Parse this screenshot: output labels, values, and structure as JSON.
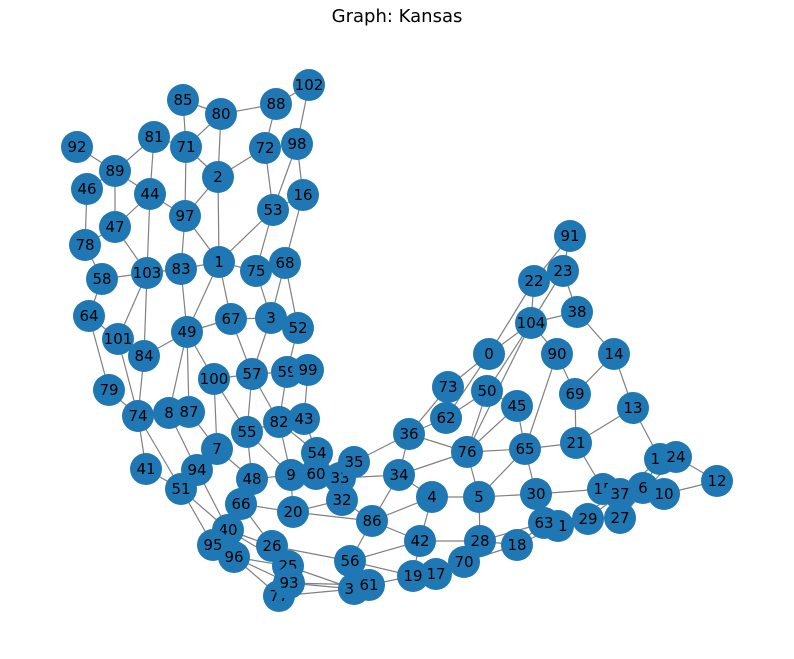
{
  "title": "Graph: Kansas",
  "colors": {
    "node": "#1f77b4",
    "edge": "#808080",
    "label": "#000000"
  },
  "nodes": [
    "0",
    "1",
    "2",
    "3",
    "4",
    "5",
    "6",
    "7",
    "8",
    "9",
    "10",
    "11",
    "12",
    "13",
    "14",
    "15",
    "16",
    "17",
    "18",
    "19",
    "20",
    "21",
    "22",
    "23",
    "24",
    "25",
    "26",
    "27",
    "28",
    "29",
    "30",
    "31",
    "32",
    "33",
    "34",
    "35",
    "36",
    "37",
    "38",
    "39",
    "40",
    "41",
    "42",
    "43",
    "44",
    "45",
    "46",
    "47",
    "48",
    "49",
    "50",
    "51",
    "52",
    "53",
    "54",
    "55",
    "56",
    "57",
    "58",
    "59",
    "60",
    "61",
    "62",
    "63",
    "64",
    "65",
    "66",
    "67",
    "68",
    "69",
    "70",
    "71",
    "72",
    "73",
    "74",
    "75",
    "76",
    "77",
    "78",
    "79",
    "80",
    "81",
    "82",
    "83",
    "84",
    "85",
    "86",
    "87",
    "88",
    "89",
    "90",
    "91",
    "92",
    "93",
    "94",
    "95",
    "96",
    "97",
    "98",
    "99",
    "100",
    "101",
    "102",
    "103",
    "104"
  ],
  "edges": [
    [
      "85",
      "80"
    ],
    [
      "85",
      "71"
    ],
    [
      "80",
      "88"
    ],
    [
      "80",
      "71"
    ],
    [
      "80",
      "2"
    ],
    [
      "88",
      "102"
    ],
    [
      "88",
      "72"
    ],
    [
      "102",
      "98"
    ],
    [
      "92",
      "89"
    ],
    [
      "81",
      "71"
    ],
    [
      "81",
      "89"
    ],
    [
      "81",
      "44"
    ],
    [
      "71",
      "2"
    ],
    [
      "71",
      "97"
    ],
    [
      "72",
      "98"
    ],
    [
      "72",
      "53"
    ],
    [
      "72",
      "2"
    ],
    [
      "98",
      "53"
    ],
    [
      "98",
      "16"
    ],
    [
      "46",
      "89"
    ],
    [
      "46",
      "78"
    ],
    [
      "89",
      "44"
    ],
    [
      "89",
      "47"
    ],
    [
      "44",
      "47"
    ],
    [
      "44",
      "97"
    ],
    [
      "44",
      "103"
    ],
    [
      "2",
      "97"
    ],
    [
      "2",
      "1"
    ],
    [
      "53",
      "1"
    ],
    [
      "53",
      "75"
    ],
    [
      "53",
      "16"
    ],
    [
      "16",
      "68"
    ],
    [
      "97",
      "83"
    ],
    [
      "97",
      "1"
    ],
    [
      "47",
      "103"
    ],
    [
      "47",
      "78"
    ],
    [
      "78",
      "58"
    ],
    [
      "58",
      "103"
    ],
    [
      "58",
      "64"
    ],
    [
      "103",
      "83"
    ],
    [
      "103",
      "101"
    ],
    [
      "103",
      "84"
    ],
    [
      "83",
      "1"
    ],
    [
      "83",
      "49"
    ],
    [
      "1",
      "75"
    ],
    [
      "1",
      "49"
    ],
    [
      "1",
      "67"
    ],
    [
      "75",
      "68"
    ],
    [
      "75",
      "3"
    ],
    [
      "68",
      "3"
    ],
    [
      "68",
      "52"
    ],
    [
      "64",
      "101"
    ],
    [
      "64",
      "79"
    ],
    [
      "101",
      "84"
    ],
    [
      "101",
      "74"
    ],
    [
      "84",
      "49"
    ],
    [
      "84",
      "74"
    ],
    [
      "49",
      "67"
    ],
    [
      "49",
      "100"
    ],
    [
      "49",
      "8"
    ],
    [
      "49",
      "87"
    ],
    [
      "67",
      "3"
    ],
    [
      "67",
      "57"
    ],
    [
      "3",
      "52"
    ],
    [
      "3",
      "57"
    ],
    [
      "52",
      "59"
    ],
    [
      "57",
      "100"
    ],
    [
      "57",
      "59"
    ],
    [
      "57",
      "55"
    ],
    [
      "57",
      "82"
    ],
    [
      "59",
      "99"
    ],
    [
      "59",
      "82"
    ],
    [
      "79",
      "74"
    ],
    [
      "74",
      "8"
    ],
    [
      "74",
      "41"
    ],
    [
      "74",
      "51"
    ],
    [
      "8",
      "87"
    ],
    [
      "8",
      "94"
    ],
    [
      "100",
      "7"
    ],
    [
      "100",
      "55"
    ],
    [
      "87",
      "7"
    ],
    [
      "55",
      "82"
    ],
    [
      "55",
      "48"
    ],
    [
      "55",
      "9"
    ],
    [
      "82",
      "43"
    ],
    [
      "82",
      "54"
    ],
    [
      "82",
      "9"
    ],
    [
      "43",
      "54"
    ],
    [
      "43",
      "99"
    ],
    [
      "7",
      "94"
    ],
    [
      "7",
      "48"
    ],
    [
      "7",
      "51"
    ],
    [
      "41",
      "51"
    ],
    [
      "94",
      "51"
    ],
    [
      "94",
      "40"
    ],
    [
      "48",
      "9"
    ],
    [
      "48",
      "66"
    ],
    [
      "54",
      "60"
    ],
    [
      "54",
      "33"
    ],
    [
      "9",
      "60"
    ],
    [
      "9",
      "20"
    ],
    [
      "60",
      "33"
    ],
    [
      "60",
      "35"
    ],
    [
      "35",
      "33"
    ],
    [
      "35",
      "36"
    ],
    [
      "33",
      "32"
    ],
    [
      "33",
      "34"
    ],
    [
      "51",
      "40"
    ],
    [
      "51",
      "95"
    ],
    [
      "66",
      "40"
    ],
    [
      "66",
      "20"
    ],
    [
      "66",
      "26"
    ],
    [
      "20",
      "32"
    ],
    [
      "20",
      "86"
    ],
    [
      "32",
      "86"
    ],
    [
      "40",
      "95"
    ],
    [
      "40",
      "96"
    ],
    [
      "40",
      "26"
    ],
    [
      "40",
      "25"
    ],
    [
      "95",
      "96"
    ],
    [
      "96",
      "25"
    ],
    [
      "96",
      "93"
    ],
    [
      "96",
      "77"
    ],
    [
      "26",
      "25"
    ],
    [
      "26",
      "56"
    ],
    [
      "25",
      "93"
    ],
    [
      "25",
      "77"
    ],
    [
      "25",
      "39"
    ],
    [
      "93",
      "77"
    ],
    [
      "93",
      "39"
    ],
    [
      "93",
      "61"
    ],
    [
      "77",
      "39"
    ],
    [
      "56",
      "39"
    ],
    [
      "56",
      "61"
    ],
    [
      "56",
      "42"
    ],
    [
      "56",
      "86"
    ],
    [
      "56",
      "19"
    ],
    [
      "39",
      "61"
    ],
    [
      "61",
      "19"
    ],
    [
      "19",
      "17"
    ],
    [
      "19",
      "42"
    ],
    [
      "17",
      "70"
    ],
    [
      "70",
      "28"
    ],
    [
      "70",
      "18"
    ],
    [
      "42",
      "28"
    ],
    [
      "42",
      "4"
    ],
    [
      "42",
      "86"
    ],
    [
      "28",
      "18"
    ],
    [
      "28",
      "5"
    ],
    [
      "28",
      "63"
    ],
    [
      "18",
      "63"
    ],
    [
      "18",
      "31"
    ],
    [
      "86",
      "4"
    ],
    [
      "86",
      "34"
    ],
    [
      "34",
      "4"
    ],
    [
      "34",
      "36"
    ],
    [
      "34",
      "76"
    ],
    [
      "36",
      "62"
    ],
    [
      "36",
      "73"
    ],
    [
      "62",
      "73"
    ],
    [
      "62",
      "50"
    ],
    [
      "62",
      "0"
    ],
    [
      "73",
      "0"
    ],
    [
      "76",
      "50"
    ],
    [
      "76",
      "104"
    ],
    [
      "76",
      "45"
    ],
    [
      "76",
      "65"
    ],
    [
      "76",
      "5"
    ],
    [
      "4",
      "5"
    ],
    [
      "5",
      "30"
    ],
    [
      "5",
      "65"
    ],
    [
      "30",
      "65"
    ],
    [
      "30",
      "63"
    ],
    [
      "30",
      "15"
    ],
    [
      "30",
      "31"
    ],
    [
      "63",
      "31"
    ],
    [
      "31",
      "29"
    ],
    [
      "31",
      "37"
    ],
    [
      "29",
      "37"
    ],
    [
      "29",
      "27"
    ],
    [
      "15",
      "37"
    ],
    [
      "15",
      "21"
    ],
    [
      "37",
      "6"
    ],
    [
      "37",
      "11"
    ],
    [
      "6",
      "11"
    ],
    [
      "6",
      "10"
    ],
    [
      "6",
      "27"
    ],
    [
      "11",
      "24"
    ],
    [
      "11",
      "13"
    ],
    [
      "10",
      "12"
    ],
    [
      "24",
      "12"
    ],
    [
      "27",
      "24"
    ],
    [
      "65",
      "45"
    ],
    [
      "65",
      "21"
    ],
    [
      "65",
      "90"
    ],
    [
      "21",
      "69"
    ],
    [
      "21",
      "13"
    ],
    [
      "69",
      "14"
    ],
    [
      "69",
      "90"
    ],
    [
      "14",
      "38"
    ],
    [
      "14",
      "13"
    ],
    [
      "90",
      "104"
    ],
    [
      "45",
      "50"
    ],
    [
      "50",
      "104"
    ],
    [
      "104",
      "38"
    ],
    [
      "104",
      "22"
    ],
    [
      "104",
      "23"
    ],
    [
      "0",
      "104"
    ],
    [
      "0",
      "22"
    ],
    [
      "22",
      "91"
    ],
    [
      "22",
      "23"
    ],
    [
      "23",
      "91"
    ],
    [
      "23",
      "38"
    ],
    [
      "76",
      "36"
    ]
  ]
}
